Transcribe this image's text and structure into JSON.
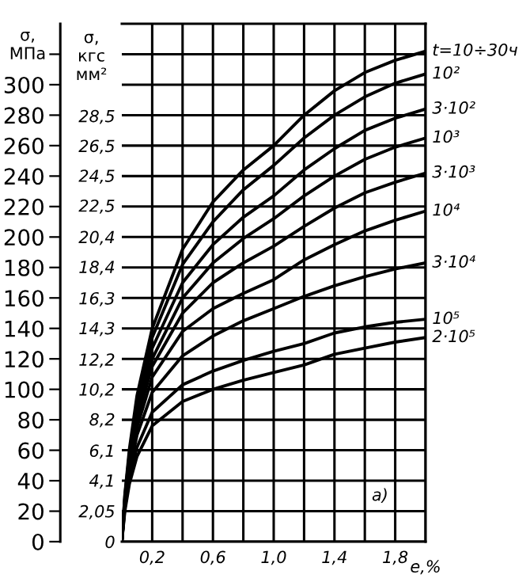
{
  "chart_data": {
    "type": "line",
    "xlabel": "e,%",
    "ylabel": "σ,\nМПа",
    "y2label": "σ,\nкгс\nмм²",
    "annotations": [
      "а)"
    ],
    "x": [
      0,
      0.02,
      0.05,
      0.1,
      0.2,
      0.4,
      0.6,
      0.8,
      1.0,
      1.2,
      1.4,
      1.6,
      1.8,
      2.0
    ],
    "series": [
      {
        "name": "t=10÷30ч",
        "color": "#000000",
        "values": [
          0,
          31,
          61,
          96,
          140,
          192,
          223,
          244,
          260,
          280,
          296,
          308,
          316,
          322
        ]
      },
      {
        "name": "10²",
        "color": "#000000",
        "values": [
          0,
          30,
          58,
          92,
          134,
          182,
          210,
          231,
          247,
          265,
          280,
          292,
          301,
          307
        ]
      },
      {
        "name": "3·10²",
        "color": "#000000",
        "values": [
          0,
          28,
          55,
          88,
          127,
          170,
          195,
          213,
          227,
          244,
          258,
          270,
          278,
          284
        ]
      },
      {
        "name": "10³",
        "color": "#000000",
        "values": [
          0,
          27,
          53,
          84,
          120,
          160,
          183,
          199,
          212,
          227,
          240,
          251,
          259,
          265
        ]
      },
      {
        "name": "3·10³",
        "color": "#000000",
        "values": [
          0,
          26,
          51,
          80,
          115,
          150,
          170,
          183,
          194,
          207,
          219,
          229,
          236,
          242
        ]
      },
      {
        "name": "10⁴",
        "color": "#000000",
        "values": [
          0,
          25,
          48,
          75,
          108,
          138,
          153,
          163,
          172,
          185,
          195,
          204,
          211,
          217
        ]
      },
      {
        "name": "3·10⁴",
        "color": "#000000",
        "values": [
          0,
          24,
          46,
          70,
          98,
          122,
          135,
          145,
          153,
          161,
          168,
          174,
          179,
          183
        ]
      },
      {
        "name": "10⁵",
        "color": "#000000",
        "values": [
          0,
          22,
          42,
          62,
          85,
          103,
          112,
          119,
          125,
          130,
          137,
          141,
          144,
          146
        ]
      },
      {
        "name": "2·10⁵",
        "color": "#000000",
        "values": [
          0,
          20,
          38,
          56,
          76,
          92,
          100,
          106,
          111,
          116,
          123,
          127,
          131,
          134
        ]
      }
    ],
    "xlim": [
      0,
      2.0
    ],
    "xticks": [
      {
        "value": 0.2,
        "label": "0,2"
      },
      {
        "value": 0.4,
        "label": null
      },
      {
        "value": 0.6,
        "label": "0,6"
      },
      {
        "value": 0.8,
        "label": null
      },
      {
        "value": 1.0,
        "label": "1,0"
      },
      {
        "value": 1.2,
        "label": null
      },
      {
        "value": 1.4,
        "label": "1,4"
      },
      {
        "value": 1.6,
        "label": null
      },
      {
        "value": 1.8,
        "label": "1,8"
      },
      {
        "value": 2.0,
        "label": null
      }
    ],
    "ylim": [
      0,
      340
    ],
    "yticks": [
      0,
      20,
      40,
      60,
      80,
      100,
      120,
      140,
      160,
      180,
      200,
      220,
      240,
      260,
      280,
      300,
      {
        "value": 320,
        "label": null
      }
    ],
    "y2lim": [
      0,
      34.66
    ],
    "y2ticks": [
      0,
      {
        "value": 2.05,
        "label": "2,05"
      },
      {
        "value": 4.1,
        "label": "4,1"
      },
      {
        "value": 6.1,
        "label": "6,1"
      },
      {
        "value": 8.2,
        "label": "8,2"
      },
      {
        "value": 10.2,
        "label": "10,2"
      },
      {
        "value": 12.2,
        "label": "12,2"
      },
      {
        "value": 14.3,
        "label": "14,3"
      },
      {
        "value": 16.3,
        "label": "16,3"
      },
      {
        "value": 18.4,
        "label": "18,4"
      },
      {
        "value": 20.4,
        "label": "20,4"
      },
      {
        "value": 22.5,
        "label": "22,5"
      },
      {
        "value": 24.5,
        "label": "24,5"
      },
      {
        "value": 26.5,
        "label": "26,5"
      },
      {
        "value": 28.5,
        "label": "28,5"
      }
    ],
    "grid": true
  }
}
